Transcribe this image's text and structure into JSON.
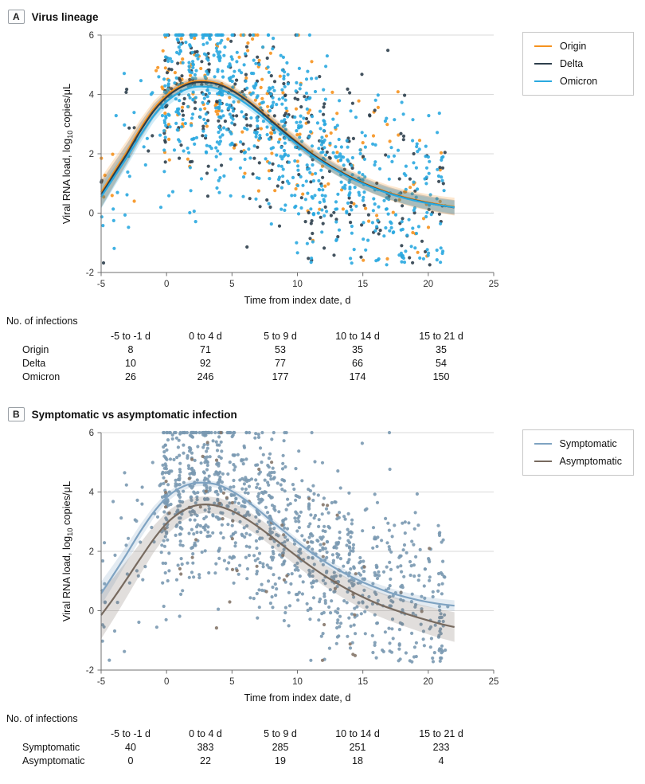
{
  "panel_a": {
    "tag": "A",
    "title": "Virus lineage",
    "table": {
      "caption": "No. of infections",
      "columns": [
        "-5 to -1 d",
        "0 to 4 d",
        "5 to 9 d",
        "10 to 14 d",
        "15 to 21 d"
      ],
      "rows": [
        {
          "label": "Origin",
          "values": [
            8,
            71,
            53,
            35,
            35
          ]
        },
        {
          "label": "Delta",
          "values": [
            10,
            92,
            77,
            66,
            54
          ]
        },
        {
          "label": "Omicron",
          "values": [
            26,
            246,
            177,
            174,
            150
          ]
        }
      ]
    }
  },
  "panel_b": {
    "tag": "B",
    "title": "Symptomatic vs asymptomatic infection",
    "table": {
      "caption": "No. of infections",
      "columns": [
        "-5 to -1 d",
        "0 to 4 d",
        "5 to 9 d",
        "10 to 14 d",
        "15 to 21 d"
      ],
      "rows": [
        {
          "label": "Symptomatic",
          "values": [
            40,
            383,
            285,
            251,
            233
          ]
        },
        {
          "label": "Asymptomatic",
          "values": [
            0,
            22,
            19,
            18,
            4
          ]
        }
      ]
    }
  },
  "chart_data": [
    {
      "type": "scatter",
      "panel": "A",
      "title": "Virus lineage",
      "xlabel": "Time from index date, d",
      "ylabel": "Viral RNA load, log10 copies/μL",
      "ylabel_parts": [
        {
          "t": "Viral RNA load, log"
        },
        {
          "t": "10",
          "sub": true
        },
        {
          "t": " copies/μL"
        }
      ],
      "xlim": [
        -5,
        25
      ],
      "ylim": [
        -2,
        6
      ],
      "xticks": [
        -5,
        0,
        5,
        10,
        15,
        20,
        25
      ],
      "yticks": [
        -2,
        0,
        2,
        4,
        6
      ],
      "gridlines_y": [
        0,
        2,
        4,
        6
      ],
      "legend_position": "top-right",
      "bins": [
        [
          -5,
          -1
        ],
        [
          0,
          4
        ],
        [
          5,
          9
        ],
        [
          10,
          14
        ],
        [
          15,
          21
        ]
      ],
      "bin_labels": [
        "-5 to -1 d",
        "0 to 4 d",
        "5 to 9 d",
        "10 to 14 d",
        "15 to 21 d"
      ],
      "scatter_sd": 1.55,
      "cap_y": 6,
      "curve_x": [
        -5,
        -4,
        -3,
        -2,
        -1,
        0,
        1,
        2,
        3,
        4,
        5,
        6,
        7,
        8,
        9,
        10,
        11,
        12,
        13,
        14,
        15,
        16,
        17,
        18,
        19,
        20,
        21,
        22
      ],
      "series": [
        {
          "name": "Origin",
          "color": "#F6921E",
          "seed": 101,
          "n_by_bin": [
            8,
            71,
            53,
            35,
            35
          ],
          "curve_y": [
            0.7,
            1.4,
            2.1,
            2.85,
            3.5,
            3.97,
            4.27,
            4.43,
            4.45,
            4.36,
            4.16,
            3.87,
            3.52,
            3.14,
            2.76,
            2.4,
            2.05,
            1.75,
            1.48,
            1.24,
            1.03,
            0.85,
            0.69,
            0.56,
            0.45,
            0.36,
            0.28,
            0.22
          ],
          "band": [
            0.5,
            0.15,
            0.3
          ]
        },
        {
          "name": "Delta",
          "color": "#2E3F4C",
          "seed": 202,
          "n_by_bin": [
            10,
            92,
            77,
            66,
            54
          ],
          "curve_y": [
            0.62,
            1.32,
            2.02,
            2.77,
            3.43,
            3.91,
            4.22,
            4.39,
            4.41,
            4.33,
            4.13,
            3.84,
            3.49,
            3.11,
            2.73,
            2.37,
            2.03,
            1.73,
            1.46,
            1.22,
            1.01,
            0.83,
            0.67,
            0.54,
            0.43,
            0.34,
            0.26,
            0.19
          ],
          "band": [
            0.45,
            0.13,
            0.25
          ]
        },
        {
          "name": "Omicron",
          "color": "#2AA9E0",
          "seed": 303,
          "n_by_bin": [
            26,
            246,
            177,
            174,
            150
          ],
          "curve_y": [
            0.55,
            1.22,
            1.9,
            2.62,
            3.27,
            3.76,
            4.07,
            4.24,
            4.26,
            4.18,
            3.99,
            3.71,
            3.38,
            3.01,
            2.65,
            2.31,
            1.98,
            1.69,
            1.43,
            1.19,
            0.99,
            0.81,
            0.66,
            0.53,
            0.42,
            0.33,
            0.26,
            0.2
          ],
          "band": [
            0.4,
            0.12,
            0.22
          ]
        }
      ]
    },
    {
      "type": "scatter",
      "panel": "B",
      "title": "Symptomatic vs asymptomatic infection",
      "xlabel": "Time from index date, d",
      "ylabel": "Viral RNA load, log10 copies/μL",
      "ylabel_parts": [
        {
          "t": "Viral RNA load, log"
        },
        {
          "t": "10",
          "sub": true
        },
        {
          "t": " copies/μL"
        }
      ],
      "xlim": [
        -5,
        25
      ],
      "ylim": [
        -2,
        6
      ],
      "xticks": [
        -5,
        0,
        5,
        10,
        15,
        20,
        25
      ],
      "yticks": [
        -2,
        0,
        2,
        4,
        6
      ],
      "gridlines_y": [
        0,
        2,
        4,
        6
      ],
      "legend_position": "top-right",
      "bins": [
        [
          -5,
          -1
        ],
        [
          0,
          4
        ],
        [
          5,
          9
        ],
        [
          10,
          14
        ],
        [
          15,
          21
        ]
      ],
      "bin_labels": [
        "-5 to -1 d",
        "0 to 4 d",
        "5 to 9 d",
        "10 to 14 d",
        "15 to 21 d"
      ],
      "scatter_sd": 1.55,
      "cap_y": 6,
      "curve_x": [
        -5,
        -4,
        -3,
        -2,
        -1,
        0,
        1,
        2,
        3,
        4,
        5,
        6,
        7,
        8,
        9,
        10,
        11,
        12,
        13,
        14,
        15,
        16,
        17,
        18,
        19,
        20,
        21,
        22
      ],
      "series": [
        {
          "name": "Symptomatic",
          "color": "#7FA3C2",
          "point_color": "#7A99B1",
          "seed": 404,
          "n_by_bin": [
            40,
            383,
            285,
            251,
            233
          ],
          "curve_y": [
            0.58,
            1.25,
            1.95,
            2.67,
            3.31,
            3.81,
            4.13,
            4.29,
            4.31,
            4.23,
            4.03,
            3.74,
            3.4,
            3.03,
            2.67,
            2.31,
            1.98,
            1.68,
            1.41,
            1.17,
            0.96,
            0.78,
            0.62,
            0.49,
            0.38,
            0.29,
            0.22,
            0.17
          ],
          "band": [
            0.4,
            0.1,
            0.18
          ]
        },
        {
          "name": "Asymptomatic",
          "color": "#776A5F",
          "point_color": "#85776A",
          "seed": 505,
          "n_by_bin": [
            0,
            22,
            19,
            18,
            4
          ],
          "curve_y": [
            -0.15,
            0.45,
            1.1,
            1.76,
            2.4,
            2.94,
            3.3,
            3.52,
            3.58,
            3.52,
            3.36,
            3.12,
            2.83,
            2.5,
            2.16,
            1.82,
            1.5,
            1.2,
            0.93,
            0.68,
            0.46,
            0.26,
            0.09,
            -0.06,
            -0.2,
            -0.33,
            -0.45,
            -0.55
          ],
          "band": [
            0.8,
            0.28,
            0.5
          ]
        }
      ]
    }
  ]
}
